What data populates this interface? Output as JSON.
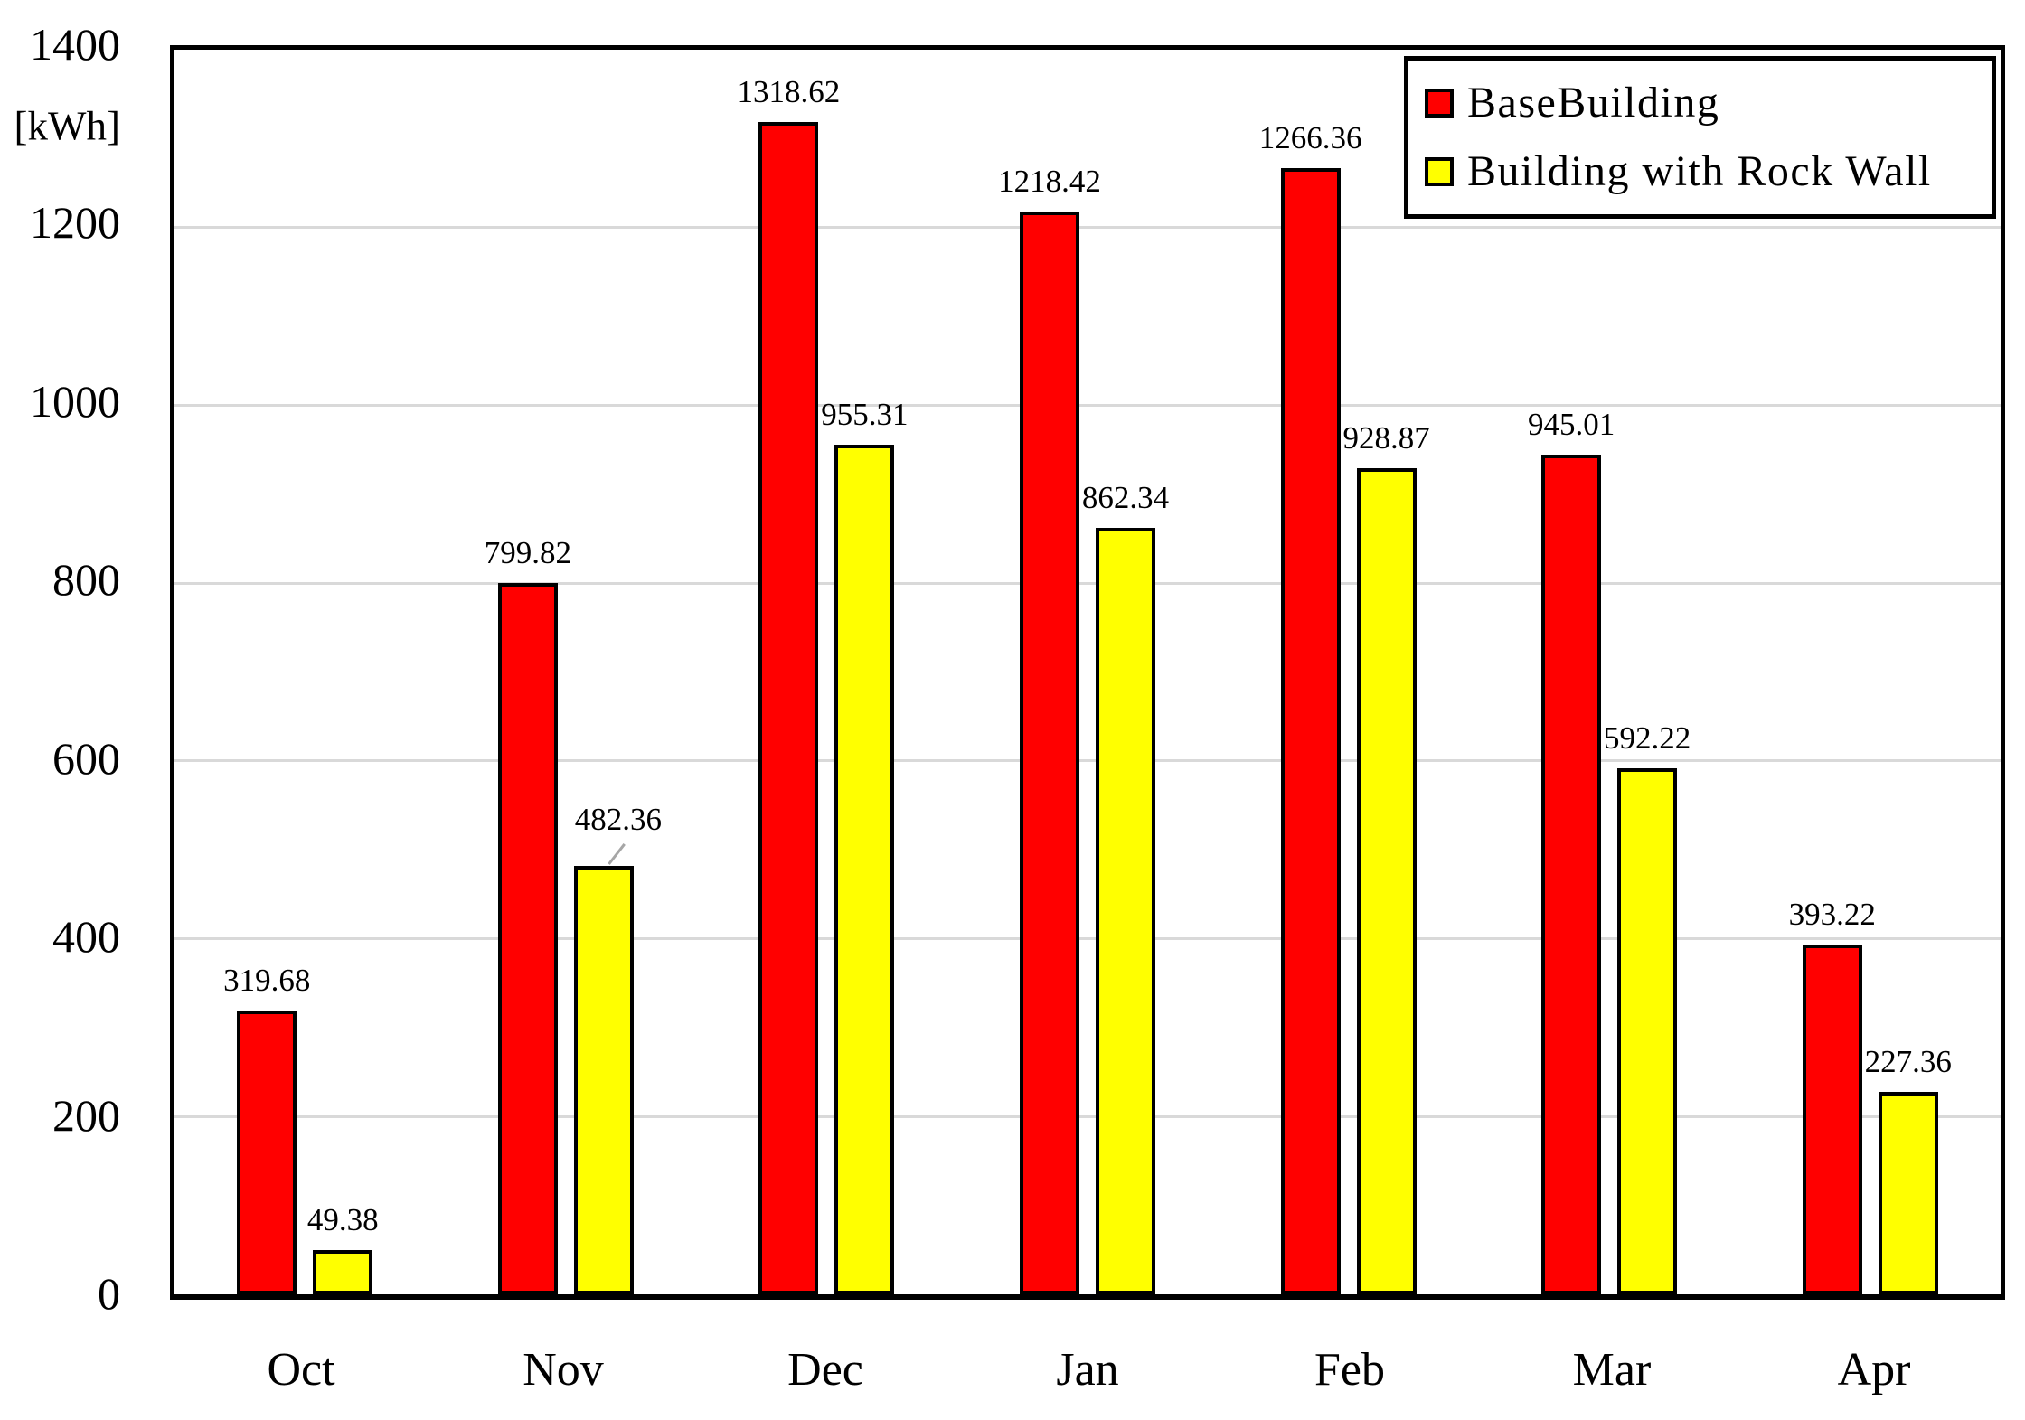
{
  "chart_data": {
    "type": "bar",
    "title": "",
    "ylabel": "[kWh]",
    "xlabel": "",
    "categories": [
      "Oct",
      "Nov",
      "Dec",
      "Jan",
      "Feb",
      "Mar",
      "Apr"
    ],
    "series": [
      {
        "name": "BaseBuilding",
        "color": "#FF0000",
        "values": [
          319.68,
          799.82,
          1318.62,
          1218.42,
          1266.36,
          945.01,
          393.22
        ],
        "labels": [
          "319.68",
          "799.82",
          "1318.62",
          "1218.42",
          "1266.36",
          "945.01",
          "393.22"
        ]
      },
      {
        "name": "Building with Rock Wall",
        "color": "#FFFF00",
        "values": [
          49.38,
          482.36,
          955.31,
          862.34,
          928.87,
          592.22,
          227.36
        ],
        "labels": [
          "49.38",
          "482.36",
          "955.31",
          "862.34",
          "928.87",
          "592.22",
          "227.36"
        ]
      }
    ],
    "ylim": [
      0,
      1400
    ],
    "yticks": [
      0,
      200,
      400,
      600,
      800,
      1000,
      1200,
      1400
    ],
    "grid": true,
    "legend_position": "top-right",
    "label_annotations": [
      {
        "category": "Nov",
        "series": "Building with Rock Wall",
        "leader_line": true
      }
    ]
  },
  "colors": {
    "bar_border": "#000000",
    "gridline": "#D9D9D9",
    "axis": "#000000",
    "leader_line": "#A6A6A6",
    "background": "#FFFFFF",
    "text": "#000000"
  }
}
